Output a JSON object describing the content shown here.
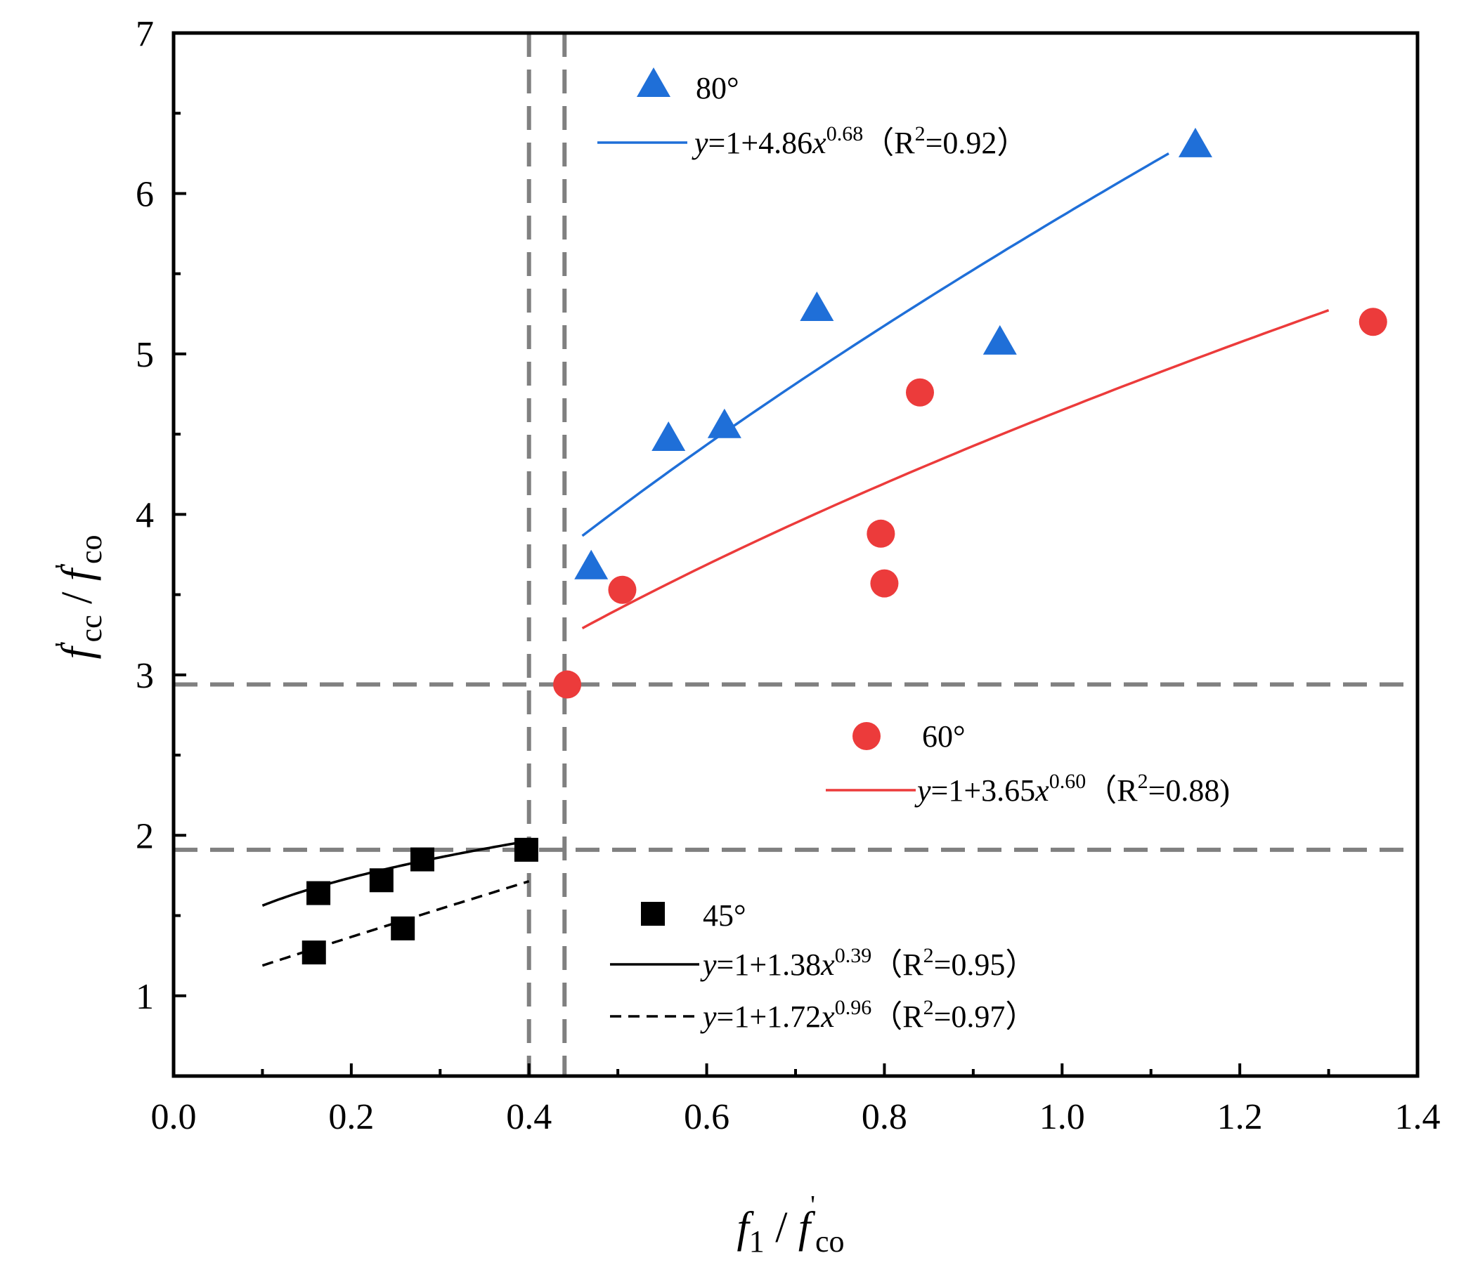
{
  "chart_data": {
    "type": "scatter",
    "xlabel": {
      "main": "f",
      "sub": "1",
      "sep": " / ",
      "main2": "f",
      "sup2": "'",
      "sub2": "co"
    },
    "ylabel": {
      "main": "f",
      "sup": "'",
      "sub": "cc",
      "sep": " / ",
      "main2": "f",
      "sup2": "'",
      "sub2": "co"
    },
    "xlim": [
      0.0,
      1.4
    ],
    "ylim": [
      0.5,
      7.0
    ],
    "x_ticks": [
      0.0,
      0.2,
      0.4,
      0.6,
      0.8,
      1.0,
      1.2,
      1.4
    ],
    "x_tick_labels": [
      "0.0",
      "0.2",
      "0.4",
      "0.6",
      "0.8",
      "1.0",
      "1.2",
      "1.4"
    ],
    "y_ticks": [
      1,
      2,
      3,
      4,
      5,
      6,
      7
    ],
    "y_tick_labels": [
      "1",
      "2",
      "3",
      "4",
      "5",
      "6",
      "7"
    ],
    "grid": false,
    "reference_lines": [
      {
        "orientation": "vertical",
        "value": 0.4
      },
      {
        "orientation": "vertical",
        "value": 0.44
      },
      {
        "orientation": "horizontal",
        "value": 2.94
      },
      {
        "orientation": "horizontal",
        "value": 1.91
      }
    ],
    "series": [
      {
        "name": "80°",
        "marker": "triangle",
        "color": "#1f6fd8",
        "points": [
          [
            0.47,
            3.67
          ],
          [
            0.557,
            4.47
          ],
          [
            0.62,
            4.55
          ],
          [
            0.724,
            5.28
          ],
          [
            0.93,
            5.07
          ],
          [
            1.15,
            6.3
          ]
        ],
        "fit": {
          "equation": "y=1+4.86x^0.68",
          "a": 4.86,
          "b": 0.68,
          "r2": "0.92",
          "x_range": [
            0.46,
            1.12
          ],
          "style": "solid"
        },
        "legend": {
          "prefix": "y",
          "eq": "=1+4.86",
          "var": "x",
          "exp": "0.68",
          "r": "（R",
          "r_sup": "2",
          "r_val": "=0.92）"
        }
      },
      {
        "name": "60°",
        "marker": "circle",
        "color": "#ec3b3b",
        "points": [
          [
            0.443,
            2.94
          ],
          [
            0.505,
            3.53
          ],
          [
            0.796,
            3.88
          ],
          [
            0.8,
            3.57
          ],
          [
            0.84,
            4.76
          ],
          [
            1.35,
            5.2
          ]
        ],
        "fit": {
          "equation": "y=1+3.65x^0.60",
          "a": 3.65,
          "b": 0.6,
          "r2": "0.88",
          "x_range": [
            0.46,
            1.3
          ],
          "style": "solid"
        },
        "legend": {
          "prefix": "y",
          "eq": "=1+3.65",
          "var": "x",
          "exp": "0.60",
          "r": "（R",
          "r_sup": "2",
          "r_val": "=0.88)"
        }
      },
      {
        "name": "45°",
        "marker": "square",
        "color": "#000000",
        "points": [
          [
            0.163,
            1.64
          ],
          [
            0.234,
            1.72
          ],
          [
            0.28,
            1.85
          ],
          [
            0.397,
            1.91
          ],
          [
            0.158,
            1.27
          ],
          [
            0.258,
            1.42
          ]
        ],
        "fits": [
          {
            "equation": "y=1+1.38x^0.39",
            "a": 1.38,
            "b": 0.39,
            "r2": "0.95",
            "x_range": [
              0.1,
              0.4
            ],
            "style": "solid",
            "legend": {
              "prefix": "y",
              "eq": "=1+1.38",
              "var": "x",
              "exp": "0.39",
              "r": "（R",
              "r_sup": "2",
              "r_val": "=0.95）"
            }
          },
          {
            "equation": "y=1+1.72x^0.96",
            "a": 1.72,
            "b": 0.96,
            "r2": "0.97",
            "x_range": [
              0.1,
              0.4
            ],
            "style": "dashed",
            "legend": {
              "prefix": "y",
              "eq": "=1+1.72",
              "var": "x",
              "exp": "0.96",
              "r": "（R",
              "r_sup": "2",
              "r_val": "=0.97）"
            }
          }
        ]
      }
    ]
  }
}
